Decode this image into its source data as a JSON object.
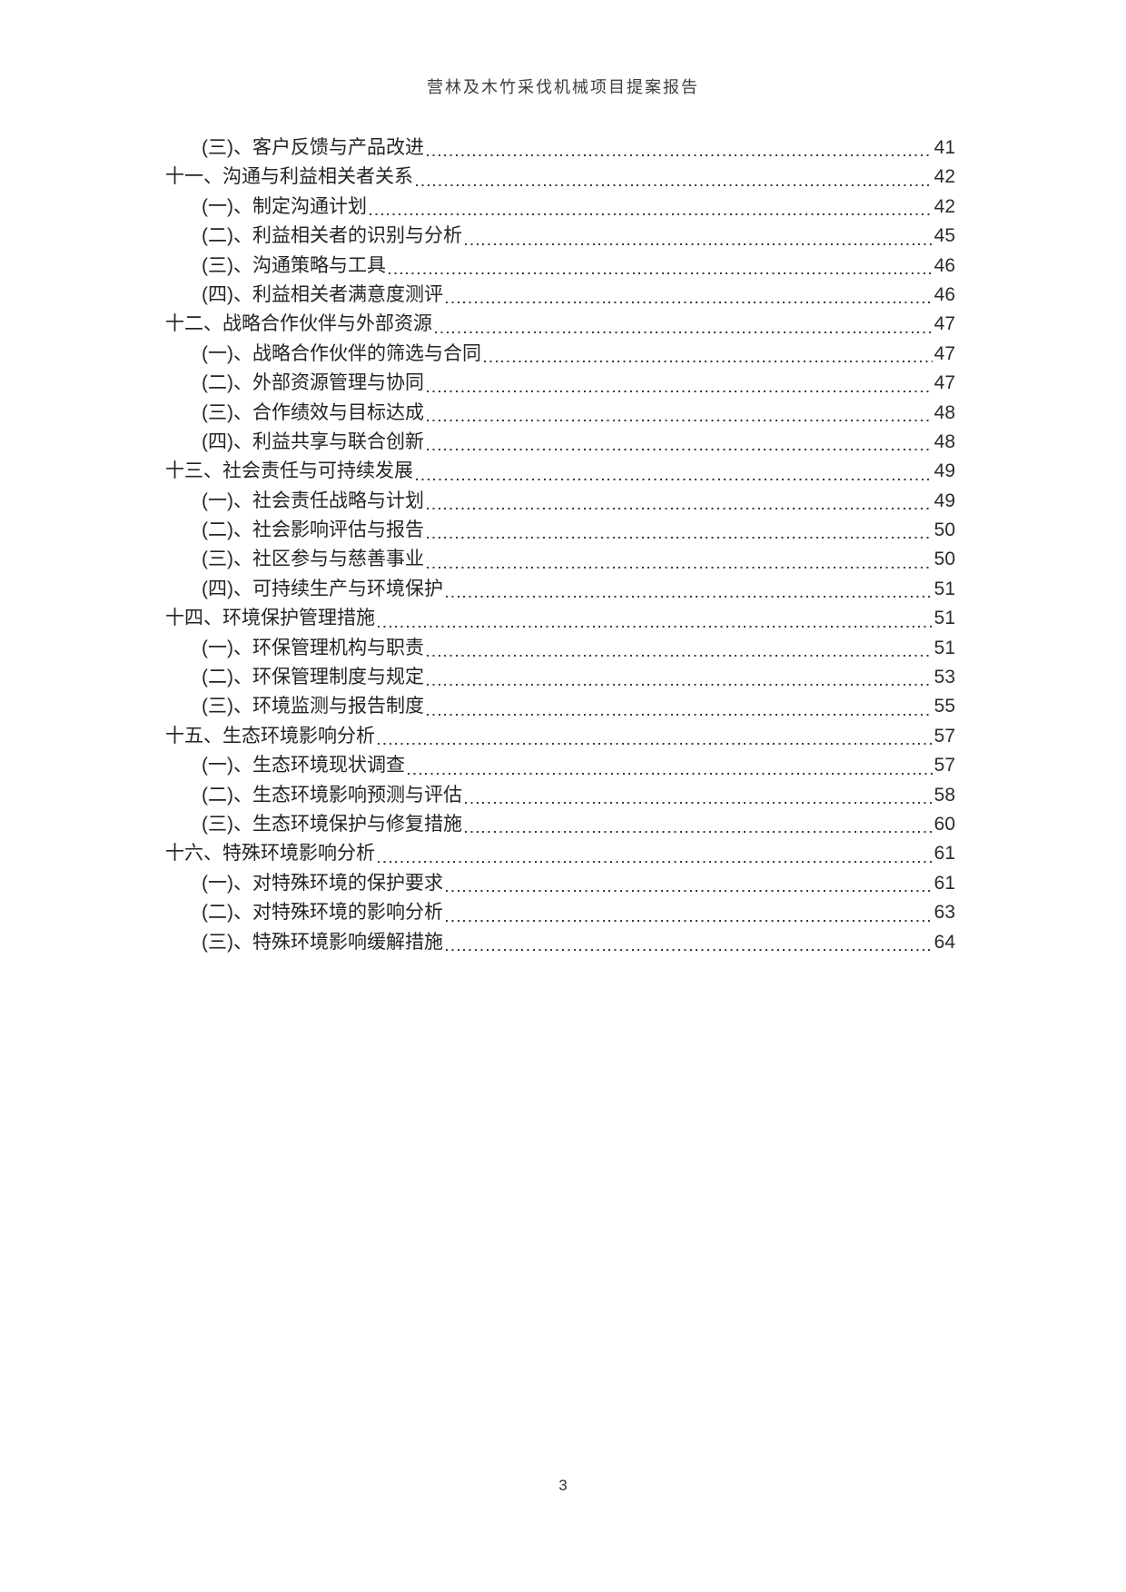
{
  "document": {
    "header_title": "营林及木竹采伐机械项目提案报告",
    "footer_page_number": "3"
  },
  "toc": {
    "entries": [
      {
        "level": 2,
        "label": "(三)、客户反馈与产品改进",
        "page": "41"
      },
      {
        "level": 1,
        "label": "十一、沟通与利益相关者关系",
        "page": "42"
      },
      {
        "level": 2,
        "label": "(一)、制定沟通计划",
        "page": "42"
      },
      {
        "level": 2,
        "label": "(二)、利益相关者的识别与分析",
        "page": "45"
      },
      {
        "level": 2,
        "label": "(三)、沟通策略与工具",
        "page": "46"
      },
      {
        "level": 2,
        "label": "(四)、利益相关者满意度测评",
        "page": "46"
      },
      {
        "level": 1,
        "label": "十二、战略合作伙伴与外部资源",
        "page": "47"
      },
      {
        "level": 2,
        "label": "(一)、战略合作伙伴的筛选与合同",
        "page": "47"
      },
      {
        "level": 2,
        "label": "(二)、外部资源管理与协同",
        "page": "47"
      },
      {
        "level": 2,
        "label": "(三)、合作绩效与目标达成",
        "page": "48"
      },
      {
        "level": 2,
        "label": "(四)、利益共享与联合创新",
        "page": "48"
      },
      {
        "level": 1,
        "label": "十三、社会责任与可持续发展",
        "page": "49"
      },
      {
        "level": 2,
        "label": "(一)、社会责任战略与计划",
        "page": "49"
      },
      {
        "level": 2,
        "label": "(二)、社会影响评估与报告",
        "page": "50"
      },
      {
        "level": 2,
        "label": "(三)、社区参与与慈善事业",
        "page": "50"
      },
      {
        "level": 2,
        "label": "(四)、可持续生产与环境保护",
        "page": "51"
      },
      {
        "level": 1,
        "label": "十四、环境保护管理措施",
        "page": "51"
      },
      {
        "level": 2,
        "label": "(一)、环保管理机构与职责",
        "page": "51"
      },
      {
        "level": 2,
        "label": "(二)、环保管理制度与规定",
        "page": "53"
      },
      {
        "level": 2,
        "label": "(三)、环境监测与报告制度",
        "page": "55"
      },
      {
        "level": 1,
        "label": "十五、生态环境影响分析",
        "page": "57"
      },
      {
        "level": 2,
        "label": "(一)、生态环境现状调查",
        "page": "57"
      },
      {
        "level": 2,
        "label": "(二)、生态环境影响预测与评估",
        "page": "58"
      },
      {
        "level": 2,
        "label": "(三)、生态环境保护与修复措施",
        "page": "60"
      },
      {
        "level": 1,
        "label": "十六、特殊环境影响分析",
        "page": "61"
      },
      {
        "level": 2,
        "label": "(一)、对特殊环境的保护要求",
        "page": "61"
      },
      {
        "level": 2,
        "label": "(二)、对特殊环境的影响分析",
        "page": "63"
      },
      {
        "level": 2,
        "label": "(三)、特殊环境影响缓解措施",
        "page": "64"
      }
    ]
  }
}
